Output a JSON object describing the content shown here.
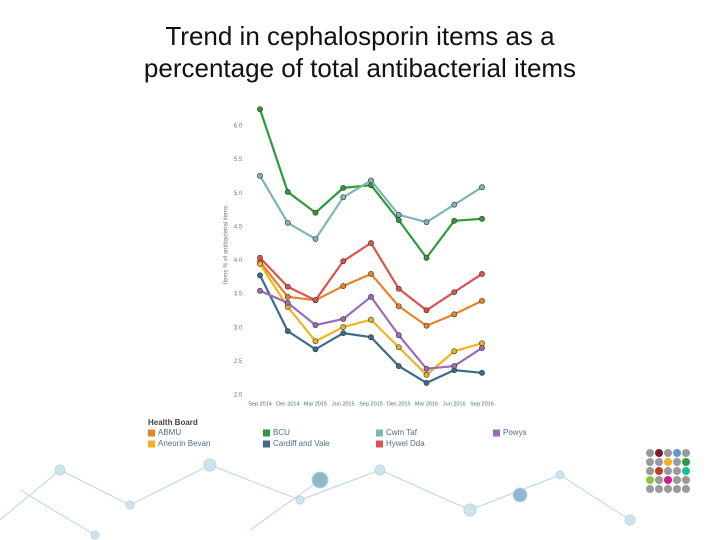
{
  "chart_data": {
    "type": "line",
    "title": "Trend in cephalosporin items as a percentage of total antibacterial items",
    "y_label": "Items % of antibacterial items",
    "legend_title": "Health Board",
    "categories": [
      "Sep 2014",
      "Dec 2014",
      "Mar 2015",
      "Jun 2015",
      "Sep 2015",
      "Dec 2015",
      "Mar 2016",
      "Jun 2016",
      "Sep 2016"
    ],
    "ylim": [
      2,
      6
    ],
    "yticks": [
      {
        "value": 2,
        "label": "2.0"
      },
      2.5,
      {
        "value": 3,
        "label": "3.0"
      },
      3.5,
      {
        "value": 4,
        "label": "4.0"
      },
      4.5,
      {
        "value": 5,
        "label": "5.0"
      },
      5.5,
      {
        "value": 6,
        "label": "6.0"
      }
    ],
    "series": [
      {
        "name": "ABMU",
        "color": "#e8822a",
        "values": [
          3.98,
          3.46,
          3.41,
          3.62,
          3.8,
          3.32,
          3.03,
          3.2,
          3.4
        ]
      },
      {
        "name": "Aneurin Bevan",
        "color": "#f0b323",
        "values": [
          3.95,
          3.31,
          2.8,
          3.01,
          3.12,
          2.71,
          2.3,
          2.65,
          2.77
        ]
      },
      {
        "name": "BCU",
        "color": "#2e9a3c",
        "values": [
          6.25,
          5.02,
          4.71,
          5.08,
          5.12,
          4.6,
          4.04,
          4.59,
          4.62
        ]
      },
      {
        "name": "Cardiff and Vale",
        "color": "#3d6b8e",
        "values": [
          3.78,
          2.95,
          2.68,
          2.92,
          2.86,
          2.43,
          2.18,
          2.37,
          2.33
        ]
      },
      {
        "name": "Cwm Taf",
        "color": "#7fb5b5",
        "values": [
          5.26,
          4.56,
          4.32,
          4.94,
          5.19,
          4.68,
          4.57,
          4.83,
          5.09
        ]
      },
      {
        "name": "Hywel Dda",
        "color": "#d9534f",
        "values": [
          4.04,
          3.61,
          3.41,
          3.99,
          4.26,
          3.58,
          3.26,
          3.53,
          3.8
        ]
      },
      {
        "name": "Powys",
        "color": "#9b6bb8",
        "values": [
          3.55,
          3.37,
          3.04,
          3.13,
          3.46,
          2.89,
          2.39,
          2.43,
          2.7
        ]
      }
    ]
  }
}
